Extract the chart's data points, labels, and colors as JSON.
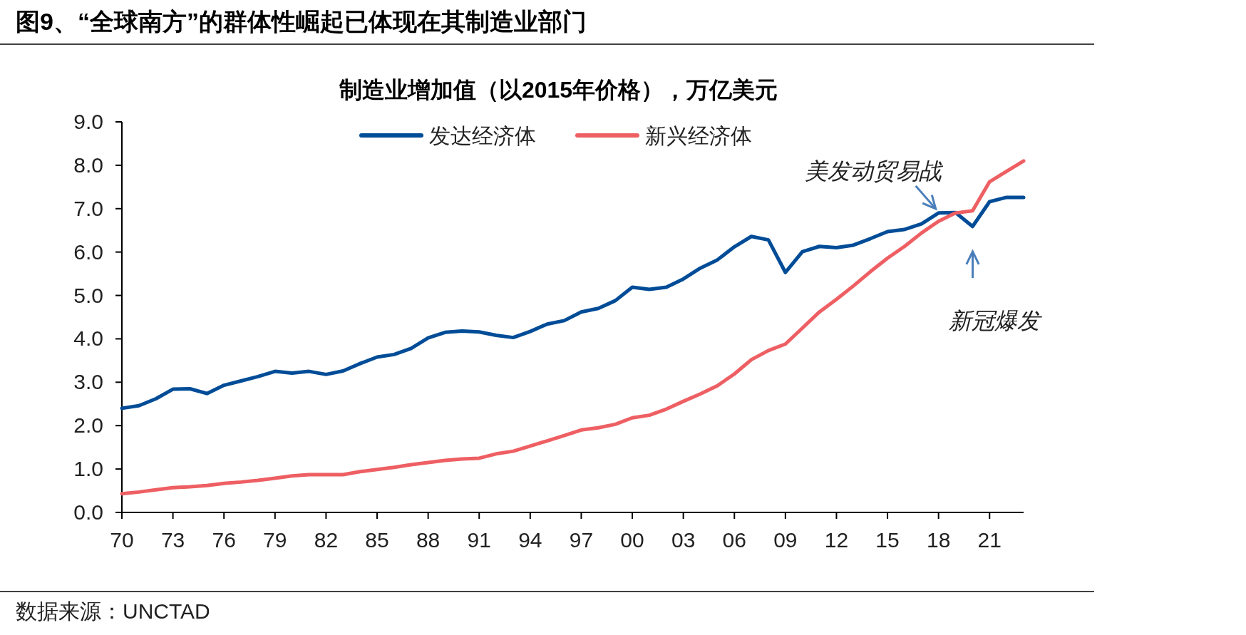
{
  "chart_data": {
    "type": "line",
    "title": "图9、“全球南方”的群体性崛起已体现在其制造业部门",
    "subtitle": "制造业增加值（以2015年价格），万亿美元",
    "categories": [
      "70",
      null,
      null,
      "73",
      null,
      null,
      "76",
      null,
      null,
      "79",
      null,
      null,
      "82",
      null,
      null,
      "85",
      null,
      null,
      "88",
      null,
      null,
      "91",
      null,
      null,
      "94",
      null,
      null,
      "97",
      null,
      null,
      "00",
      null,
      null,
      "03",
      null,
      null,
      "06",
      null,
      null,
      "09",
      null,
      null,
      "12",
      null,
      null,
      "15",
      null,
      null,
      "18",
      null,
      null,
      "21",
      null,
      null
    ],
    "series": [
      {
        "name": "发达经济体",
        "color": "#004c97",
        "values": [
          2.4,
          2.46,
          2.62,
          2.84,
          2.85,
          2.74,
          2.93,
          3.03,
          3.13,
          3.25,
          3.21,
          3.25,
          3.18,
          3.26,
          3.43,
          3.58,
          3.64,
          3.78,
          4.02,
          4.15,
          4.18,
          4.16,
          4.08,
          4.03,
          4.17,
          4.34,
          4.42,
          4.62,
          4.7,
          4.88,
          5.19,
          5.14,
          5.19,
          5.38,
          5.63,
          5.82,
          6.12,
          6.36,
          6.28,
          5.53,
          6.01,
          6.13,
          6.1,
          6.16,
          6.31,
          6.47,
          6.52,
          6.65,
          6.9,
          6.91,
          6.59,
          7.16,
          7.26,
          7.26
        ]
      },
      {
        "name": "新兴经济体",
        "color": "#ee5f63",
        "values": [
          0.43,
          0.47,
          0.52,
          0.57,
          0.59,
          0.62,
          0.67,
          0.7,
          0.74,
          0.79,
          0.84,
          0.87,
          0.87,
          0.87,
          0.94,
          0.99,
          1.04,
          1.1,
          1.15,
          1.2,
          1.23,
          1.25,
          1.35,
          1.41,
          1.53,
          1.65,
          1.77,
          1.9,
          1.95,
          2.03,
          2.18,
          2.24,
          2.38,
          2.56,
          2.73,
          2.92,
          3.19,
          3.52,
          3.73,
          3.88,
          4.25,
          4.62,
          4.91,
          5.22,
          5.55,
          5.86,
          6.13,
          6.44,
          6.71,
          6.9,
          6.95,
          7.62,
          7.86,
          8.1
        ]
      }
    ],
    "ylim": [
      0,
      9
    ],
    "yticks": [
      {
        "value": 0,
        "label": "0.0"
      },
      {
        "value": 1,
        "label": "1.0"
      },
      {
        "value": 2,
        "label": "2.0"
      },
      {
        "value": 3,
        "label": "3.0"
      },
      {
        "value": 4,
        "label": "4.0"
      },
      {
        "value": 5,
        "label": "5.0"
      },
      {
        "value": 6,
        "label": "6.0"
      },
      {
        "value": 7,
        "label": "7.0"
      },
      {
        "value": 8,
        "label": "8.0"
      },
      {
        "value": 9,
        "label": "9.0"
      }
    ],
    "legend": "top",
    "grid": false,
    "annotations": [
      {
        "text": "美发动贸易战",
        "x": "18",
        "y": 6.9
      },
      "新冠爆发",
      "数据来源：UNCTAD"
    ]
  }
}
